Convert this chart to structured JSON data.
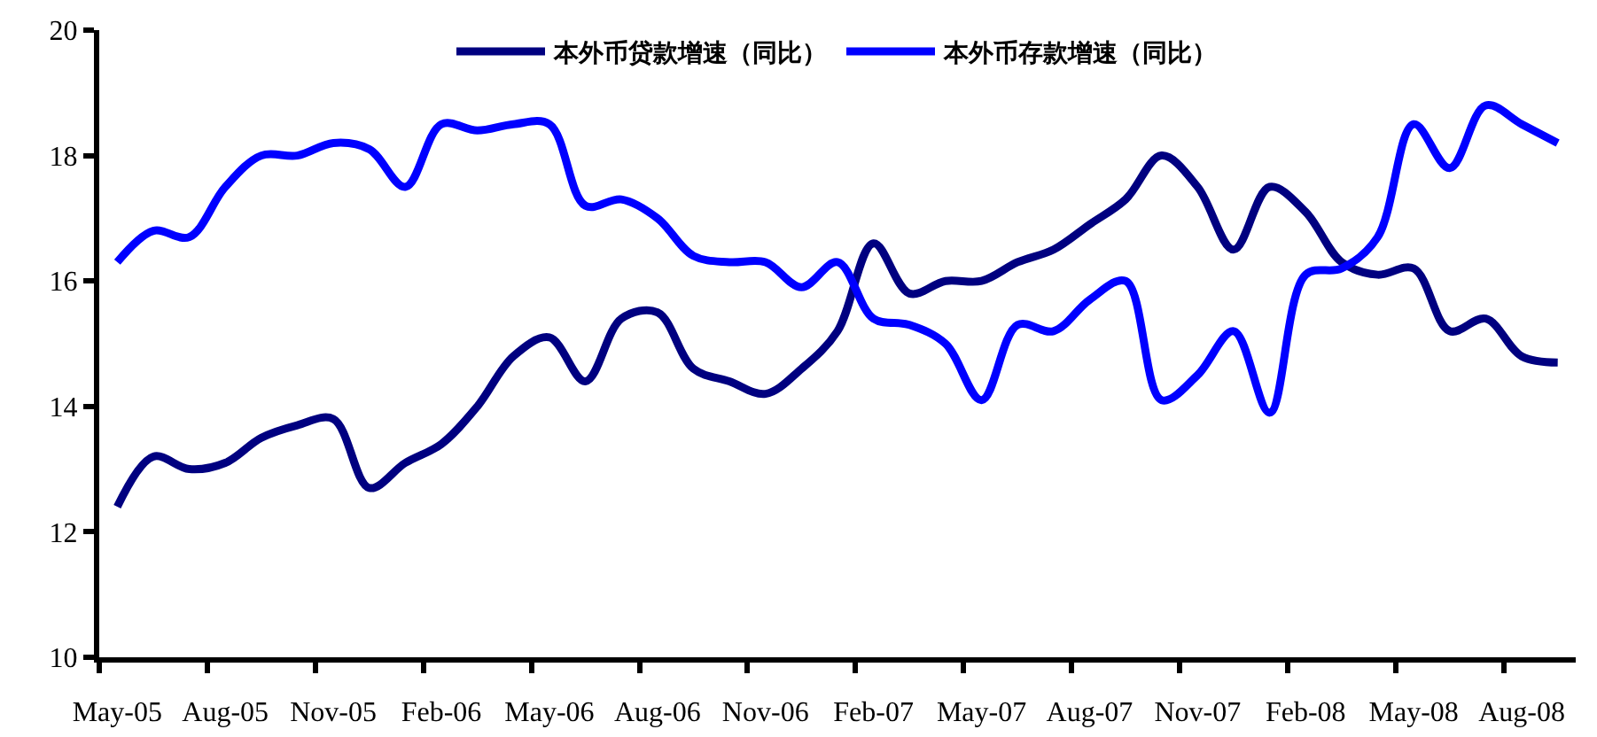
{
  "chart_data": {
    "type": "line",
    "categories": [
      "May-05",
      null,
      null,
      "Aug-05",
      null,
      null,
      "Nov-05",
      null,
      null,
      "Feb-06",
      null,
      null,
      "May-06",
      null,
      null,
      "Aug-06",
      null,
      null,
      "Nov-06",
      null,
      null,
      "Feb-07",
      null,
      null,
      "May-07",
      null,
      null,
      "Aug-07",
      null,
      null,
      "Nov-07",
      null,
      null,
      "Feb-08",
      null,
      null,
      "May-08",
      null,
      null,
      "Aug-08",
      null
    ],
    "series": [
      {
        "name": "本外币贷款增速（同比）",
        "color": "#000080",
        "values": [
          12.4,
          13.2,
          13.0,
          13.1,
          13.5,
          13.7,
          13.8,
          12.7,
          13.1,
          13.4,
          14.0,
          14.8,
          15.1,
          14.4,
          15.4,
          15.5,
          14.6,
          14.4,
          14.2,
          14.6,
          15.2,
          16.6,
          15.8,
          16.0,
          16.0,
          16.3,
          16.5,
          16.9,
          17.3,
          18.0,
          17.5,
          16.5,
          17.5,
          17.1,
          16.3,
          16.1,
          16.2,
          15.2,
          15.4,
          14.8,
          14.7
        ]
      },
      {
        "name": "本外币存款增速（同比）",
        "color": "#0000ff",
        "values": [
          16.3,
          16.8,
          16.7,
          17.5,
          18.0,
          18.0,
          18.2,
          18.1,
          17.5,
          18.5,
          18.4,
          18.5,
          18.5,
          17.2,
          17.3,
          17.0,
          16.4,
          16.3,
          16.3,
          15.9,
          16.3,
          15.4,
          15.3,
          15.0,
          14.1,
          15.3,
          15.2,
          15.7,
          16.0,
          14.1,
          14.5,
          15.2,
          13.9,
          16.1,
          16.2,
          16.7,
          18.5,
          17.8,
          18.8,
          18.5,
          18.2
        ]
      }
    ],
    "ylim": [
      10,
      20
    ],
    "yticks": [
      10,
      12,
      14,
      16,
      18,
      20
    ],
    "legend": "top"
  }
}
